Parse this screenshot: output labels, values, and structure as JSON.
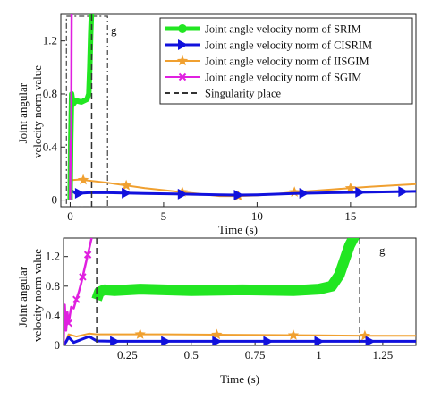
{
  "chart_data": [
    {
      "type": "line",
      "panel": "top",
      "xlabel": "Time (s)",
      "ylabel": "Joint angular velocity norm value",
      "xlim": [
        -0.5,
        18.5
      ],
      "ylim": [
        -0.05,
        1.4
      ],
      "xticks": [
        0,
        5,
        10,
        15
      ],
      "yticks": [
        0,
        0.4,
        0.8,
        1.2
      ],
      "ytick_labels": [
        "0",
        "0.4",
        "0.8",
        "1.2"
      ],
      "corner_label": "g",
      "zoom_box": {
        "x": [
          -0.2,
          2.0
        ],
        "y": [
          -0.05,
          1.4
        ]
      },
      "singularity_x": [
        1.15
      ],
      "legend": {
        "placement": "top-right",
        "entries": [
          {
            "label": "Joint angle velocity norm of SRIM",
            "color": "#22e622",
            "marker": "circle"
          },
          {
            "label": "Joint angle velocity norm of CISRIM",
            "color": "#1111dd",
            "marker": "triangle-right"
          },
          {
            "label": "Joint angle velocity norm of IISGIM",
            "color": "#f0a030",
            "marker": "star"
          },
          {
            "label": "Joint angle velocity norm of SGIM",
            "color": "#e020e0",
            "marker": "x"
          },
          {
            "label": "Singularity place",
            "color": "#333333",
            "marker": "dashed"
          }
        ]
      },
      "series": [
        {
          "key": "srim",
          "color": "#22e622",
          "width": 6,
          "x": [
            0,
            0.03,
            0.08,
            0.15,
            0.3,
            0.6,
            0.9,
            1.0,
            1.05,
            1.1,
            1.15
          ],
          "y": [
            0,
            0.45,
            0.8,
            0.72,
            0.75,
            0.74,
            0.76,
            0.8,
            1.0,
            1.25,
            1.45
          ]
        },
        {
          "key": "cisrim",
          "color": "#1111dd",
          "width": 3,
          "x": [
            0,
            0.1,
            0.3,
            1,
            2,
            4,
            6,
            8,
            9,
            10,
            12,
            14,
            16,
            18.5
          ],
          "y": [
            0,
            0.07,
            0.05,
            0.055,
            0.055,
            0.05,
            0.045,
            0.04,
            0.038,
            0.04,
            0.05,
            0.055,
            0.06,
            0.065
          ],
          "marker_x": [
            0.5,
            3,
            6,
            9,
            12.5,
            15.5,
            17.8
          ]
        },
        {
          "key": "iisgim",
          "color": "#f0a030",
          "width": 2,
          "x": [
            0,
            0.1,
            0.5,
            2,
            4,
            6,
            7,
            8,
            9,
            10,
            11,
            12,
            14,
            16,
            18.5
          ],
          "y": [
            0,
            0.15,
            0.155,
            0.13,
            0.09,
            0.06,
            0.045,
            0.03,
            0.03,
            0.035,
            0.045,
            0.06,
            0.08,
            0.1,
            0.12
          ],
          "marker_x": [
            0.7,
            3,
            6,
            9,
            12,
            15
          ]
        },
        {
          "key": "sgim",
          "color": "#e020e0",
          "width": 2.5,
          "x": [
            0,
            0.02,
            0.04,
            0.06,
            0.07,
            0.08
          ],
          "y": [
            0,
            0.45,
            0.25,
            0.55,
            1.1,
            1.45
          ]
        }
      ]
    },
    {
      "type": "line",
      "panel": "bottom",
      "xlabel": "Time (s)",
      "ylabel": "Joint angular velocity norm value",
      "xlim": [
        0,
        1.38
      ],
      "ylim": [
        0,
        1.45
      ],
      "xticks": [
        0.25,
        0.5,
        0.75,
        1,
        1.25
      ],
      "xtick_labels": [
        "0.25",
        "0.5",
        "0.75",
        "1",
        "1.25"
      ],
      "yticks": [
        0,
        0.4,
        0.8,
        1.2
      ],
      "ytick_labels": [
        "0",
        "0.4",
        "0.8",
        "1.2"
      ],
      "corner_label": "g",
      "singularity_x": [
        0.13,
        1.16
      ],
      "series": [
        {
          "key": "srim",
          "color": "#22e622",
          "width": 12,
          "x": [
            0.13,
            0.14,
            0.16,
            0.2,
            0.3,
            0.5,
            0.7,
            0.9,
            1.0,
            1.05,
            1.08,
            1.1,
            1.12,
            1.14
          ],
          "y": [
            0.62,
            0.72,
            0.75,
            0.74,
            0.76,
            0.74,
            0.75,
            0.74,
            0.76,
            0.8,
            0.95,
            1.15,
            1.35,
            1.48
          ],
          "marker_x": [
            0.16,
            0.4,
            0.6,
            0.8,
            0.95
          ]
        },
        {
          "key": "cisrim",
          "color": "#1111dd",
          "width": 3,
          "x": [
            0,
            0.01,
            0.02,
            0.04,
            0.07,
            0.1,
            0.13,
            0.2,
            0.4,
            0.6,
            0.8,
            1.0,
            1.2,
            1.38
          ],
          "y": [
            0,
            0.05,
            0.11,
            0.04,
            0.08,
            0.12,
            0.06,
            0.055,
            0.055,
            0.055,
            0.055,
            0.055,
            0.055,
            0.055
          ],
          "marker_x": [
            0.2,
            0.4,
            0.6,
            0.8,
            1.0,
            1.2
          ]
        },
        {
          "key": "iisgim",
          "color": "#f0a030",
          "width": 2,
          "x": [
            0,
            0.01,
            0.02,
            0.05,
            0.1,
            0.13,
            0.2,
            0.4,
            0.6,
            0.8,
            1.0,
            1.2,
            1.38
          ],
          "y": [
            0,
            0.06,
            0.15,
            0.12,
            0.16,
            0.15,
            0.15,
            0.15,
            0.145,
            0.14,
            0.135,
            0.13,
            0.13
          ],
          "marker_x": [
            0.3,
            0.6,
            0.9,
            1.18
          ]
        },
        {
          "key": "sgim",
          "color": "#e020e0",
          "width": 2.5,
          "x": [
            0,
            0.005,
            0.01,
            0.015,
            0.02,
            0.03,
            0.04,
            0.05,
            0.06,
            0.07,
            0.08,
            0.09,
            0.1,
            0.11
          ],
          "y": [
            0,
            0.55,
            0.2,
            0.45,
            0.3,
            0.52,
            0.5,
            0.62,
            0.72,
            0.85,
            1.0,
            1.15,
            1.3,
            1.45
          ],
          "marker_x": [
            0.02,
            0.05,
            0.075,
            0.095
          ]
        }
      ]
    }
  ]
}
